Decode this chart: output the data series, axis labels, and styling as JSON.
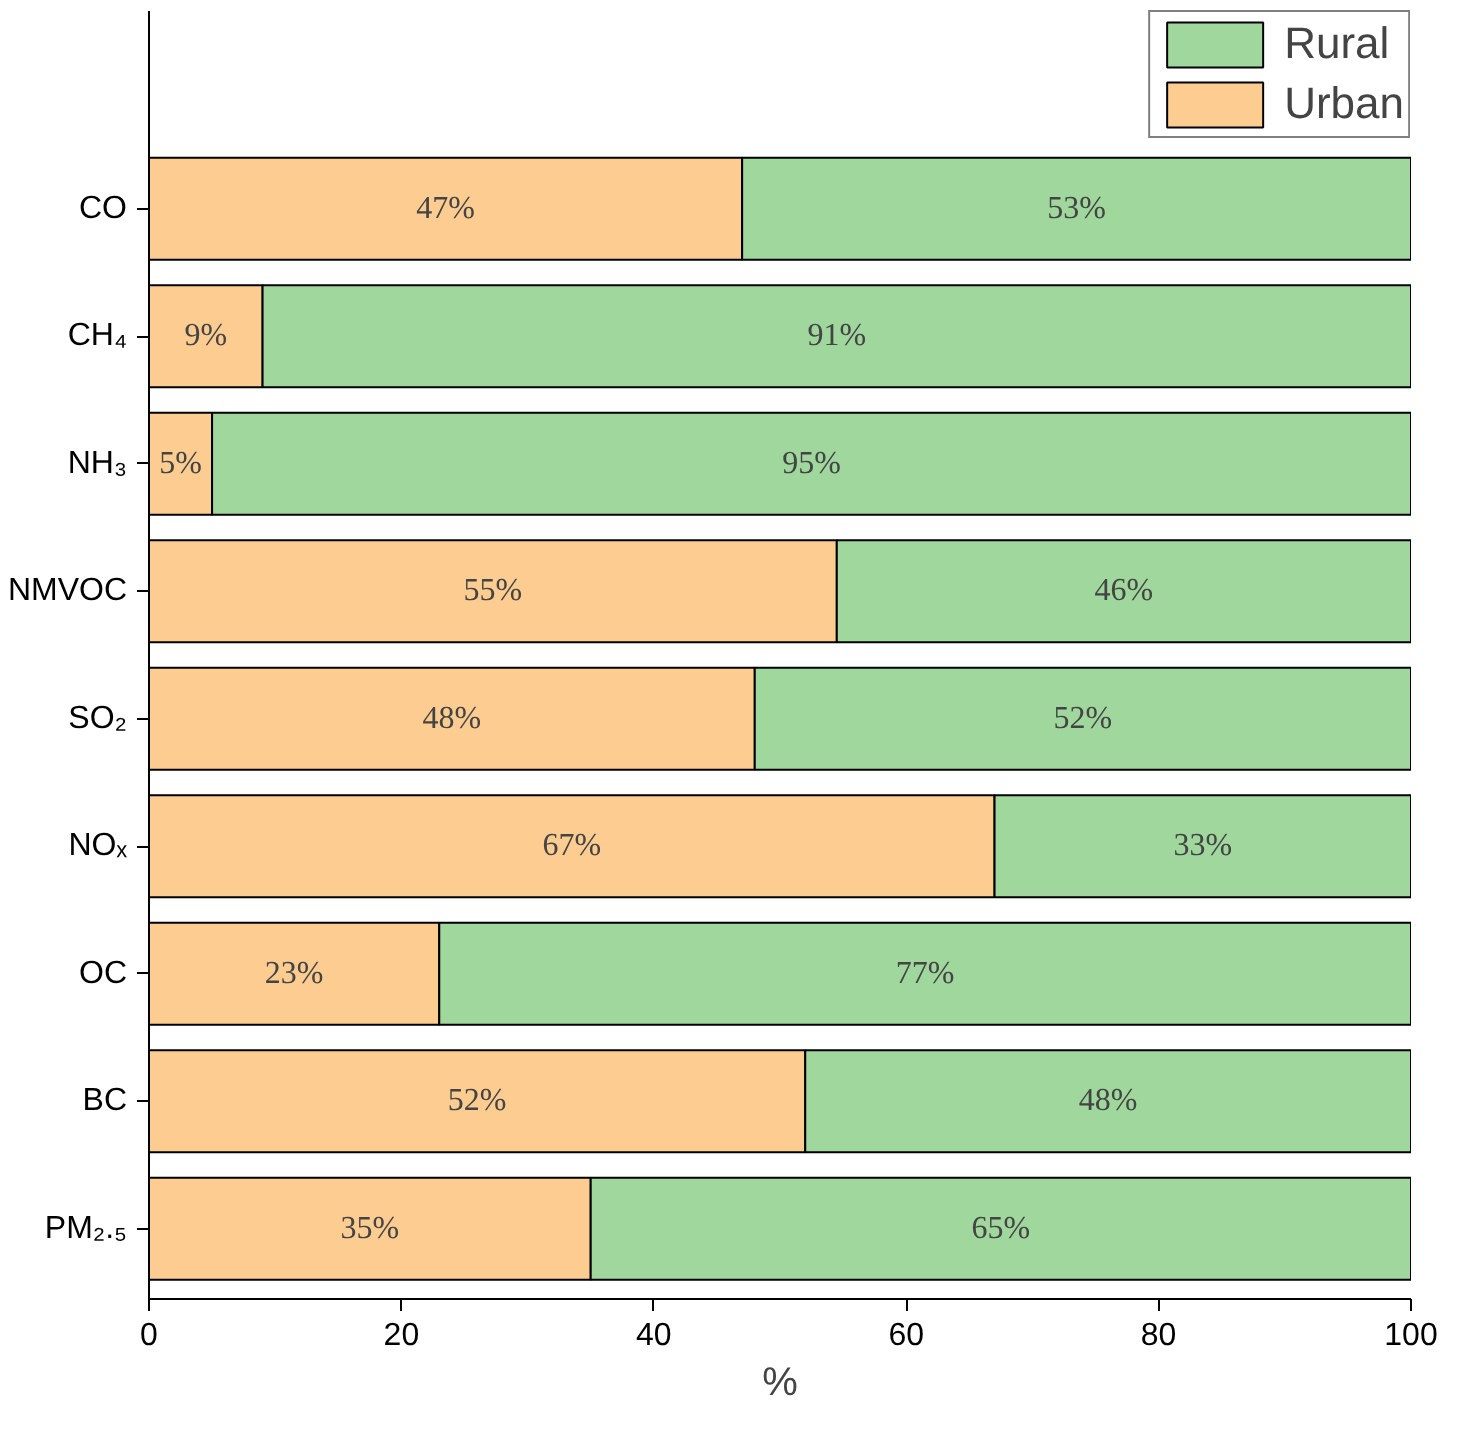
{
  "chart_data": {
    "type": "bar",
    "orientation": "horizontal",
    "stacked": true,
    "xlabel": "%",
    "categories": [
      "CO",
      "CH₄",
      "NH₃",
      "NMVOC",
      "SO₂",
      "NOₓ",
      "OC",
      "BC",
      "PM₂.₅"
    ],
    "series": [
      {
        "name": "Urban",
        "color": "#fdcc91",
        "values": [
          47,
          9,
          5,
          54.5,
          48,
          67,
          23,
          52,
          35
        ],
        "value_labels": [
          "47%",
          "9%",
          "5%",
          "55%",
          "48%",
          "67%",
          "23%",
          "52%",
          "35%"
        ]
      },
      {
        "name": "Rural",
        "color": "#9fd79d",
        "values": [
          53,
          91,
          95,
          45.5,
          52,
          33,
          77,
          48,
          65
        ],
        "value_labels": [
          "53%",
          "91%",
          "95%",
          "46%",
          "52%",
          "33%",
          "77%",
          "48%",
          "65%"
        ]
      }
    ],
    "xlim": [
      0,
      100
    ],
    "xticks": [
      0,
      20,
      40,
      60,
      80,
      100
    ],
    "grid": false,
    "legend": "top right"
  }
}
